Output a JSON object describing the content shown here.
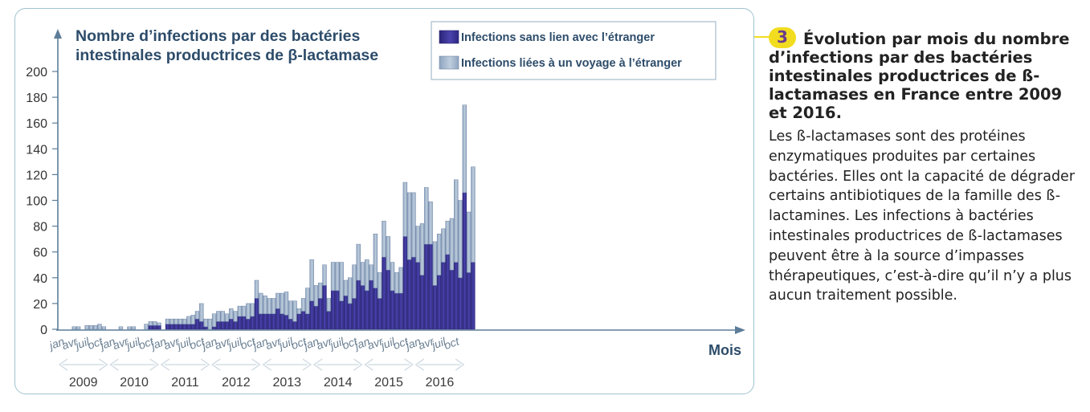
{
  "chart_data": {
    "type": "bar",
    "stacked": true,
    "title": "Nombre d’infections par des bactéries intestinales productrices de β-lactamase",
    "xlabel": "Mois",
    "ylabel": "",
    "ylim": [
      0,
      200
    ],
    "yticks": [
      0,
      20,
      40,
      60,
      80,
      100,
      120,
      140,
      160,
      180,
      200
    ],
    "grid": false,
    "legend_position": "top-right",
    "month_tick_labels": [
      "jan",
      "avr",
      "juil",
      "oct"
    ],
    "years": [
      "2009",
      "2010",
      "2011",
      "2012",
      "2013",
      "2014",
      "2015",
      "2016"
    ],
    "series": [
      {
        "name": "Infections sans lien avec l’étranger",
        "color": "#3d3697",
        "values": [
          0,
          0,
          0,
          0,
          0,
          0,
          0,
          0,
          0,
          0,
          0,
          0,
          0,
          0,
          0,
          0,
          0,
          0,
          0,
          0,
          0,
          3,
          3,
          3,
          0,
          4,
          4,
          4,
          4,
          4,
          4,
          4,
          8,
          6,
          2,
          0,
          2,
          6,
          6,
          6,
          8,
          6,
          10,
          10,
          8,
          10,
          24,
          12,
          12,
          12,
          12,
          16,
          12,
          11,
          8,
          6,
          12,
          14,
          12,
          22,
          18,
          24,
          34,
          14,
          30,
          30,
          22,
          26,
          20,
          24,
          38,
          34,
          30,
          38,
          32,
          24,
          56,
          46,
          30,
          28,
          28,
          72,
          54,
          56,
          52,
          42,
          66,
          66,
          34,
          42,
          52,
          58,
          46,
          52,
          40,
          106
        ]
      },
      {
        "name": "Infections liées à un voyage à l’étranger",
        "color": "#a4b7ce",
        "values": [
          0,
          0,
          0,
          2,
          2,
          0,
          3,
          3,
          3,
          4,
          2,
          0,
          0,
          0,
          2,
          0,
          2,
          2,
          0,
          0,
          4,
          3,
          3,
          2,
          0,
          4,
          4,
          4,
          4,
          4,
          6,
          7,
          6,
          14,
          6,
          8,
          10,
          8,
          8,
          6,
          8,
          8,
          8,
          8,
          12,
          10,
          14,
          16,
          14,
          12,
          12,
          12,
          16,
          18,
          14,
          16,
          4,
          10,
          20,
          32,
          16,
          12,
          16,
          10,
          22,
          22,
          30,
          12,
          20,
          26,
          28,
          18,
          24,
          12,
          42,
          20,
          28,
          26,
          22,
          16,
          20,
          42,
          52,
          50,
          28,
          40,
          44,
          33,
          34,
          32,
          26,
          26,
          40,
          64,
          60,
          68
        ]
      },
      {
        "name": "",
        "color": "#3d3697",
        "note_hidden": true,
        "values": []
      }
    ],
    "tail": {
      "month_index_start": 96,
      "unexposed": [
        44,
        52
      ],
      "travel": [
        47,
        74
      ]
    }
  },
  "caption": {
    "number": "3",
    "title": "Évolution par mois du nombre d’infections par des bactéries intestinales productrices de ß-lactamases en France entre 2009 et 2016.",
    "text": "Les ß-lactamases sont des protéines enzymatiques produites par certaines bactéries. Elles ont la capacité de dégrader certains antibiotiques de la famille des ß-lactamines. Les infections à bactéries intestinales productrices de ß-lactamases peuvent être à la source d’impasses thérapeutiques, c’est-à-dire qu’il n’y a plus aucun traitement possible."
  }
}
